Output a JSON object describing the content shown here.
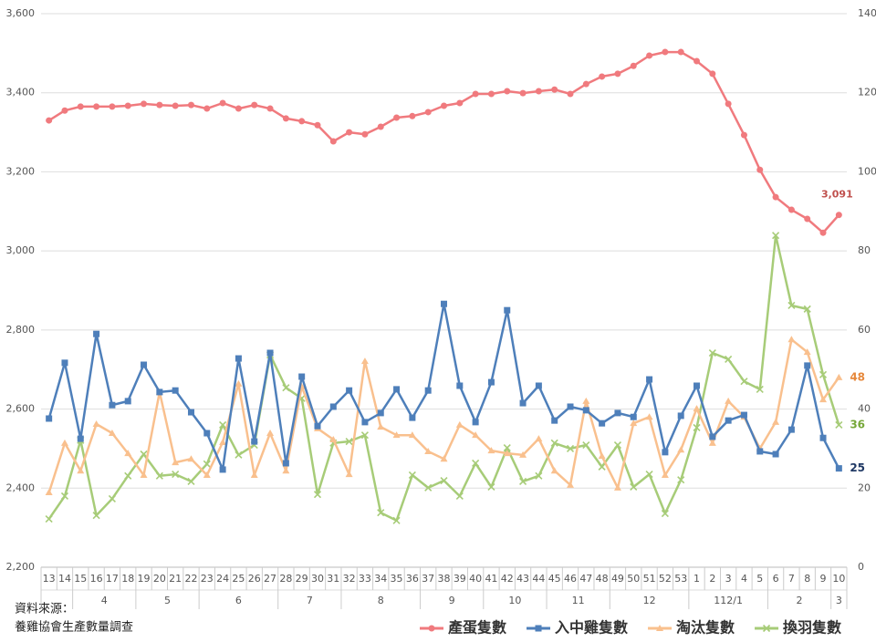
{
  "chart_data": {
    "type": "line",
    "categories": [
      "13",
      "14",
      "15",
      "16",
      "17",
      "18",
      "19",
      "20",
      "21",
      "22",
      "23",
      "24",
      "25",
      "26",
      "27",
      "28",
      "29",
      "30",
      "31",
      "32",
      "33",
      "34",
      "35",
      "36",
      "37",
      "38",
      "39",
      "40",
      "41",
      "42",
      "43",
      "44",
      "45",
      "46",
      "47",
      "48",
      "49",
      "50",
      "51",
      "52",
      "53",
      "1",
      "2",
      "3",
      "4",
      "5",
      "6",
      "7",
      "8",
      "9",
      "10"
    ],
    "category_groups": [
      {
        "label": null,
        "count": 2
      },
      {
        "label": "4",
        "count": 4
      },
      {
        "label": "5",
        "count": 4
      },
      {
        "label": "6",
        "count": 5
      },
      {
        "label": "7",
        "count": 4
      },
      {
        "label": "8",
        "count": 5
      },
      {
        "label": "9",
        "count": 4
      },
      {
        "label": "10",
        "count": 4
      },
      {
        "label": "11",
        "count": 4
      },
      {
        "label": "12",
        "count": 5
      },
      {
        "label": "112/1",
        "count": 5
      },
      {
        "label": "2",
        "count": 4
      },
      {
        "label": "3",
        "count": 1
      }
    ],
    "ylim": [
      2200,
      3600
    ],
    "yticks": [
      {
        "value": 2200,
        "label": "2,200"
      },
      {
        "value": 2400,
        "label": "2,400"
      },
      {
        "value": 2600,
        "label": "2,600"
      },
      {
        "value": 2800,
        "label": "2,800"
      },
      {
        "value": 3000,
        "label": "3,000"
      },
      {
        "value": 3200,
        "label": "3,200"
      },
      {
        "value": 3400,
        "label": "3,400"
      },
      {
        "value": 3600,
        "label": "3,600"
      }
    ],
    "y2lim": [
      0,
      140
    ],
    "y2ticks": [
      0,
      20,
      40,
      60,
      80,
      100,
      120,
      140
    ],
    "grid": true,
    "label_last": true,
    "source": [
      "資料來源：",
      "養雞協會生產數量調查"
    ],
    "series": [
      {
        "name": "產蛋隻數",
        "color": "#f07a7e",
        "label_color": "#c0504d",
        "marker": "circle",
        "values": [
          3330,
          3355,
          3365,
          3365,
          3365,
          3367,
          3372,
          3369,
          3367,
          3369,
          3360,
          3374,
          3360,
          3369,
          3360,
          3335,
          3328,
          3318,
          3277,
          3300,
          3295,
          3314,
          3337,
          3341,
          3351,
          3367,
          3374,
          3397,
          3397,
          3404,
          3399,
          3404,
          3408,
          3397,
          3422,
          3441,
          3448,
          3468,
          3494,
          3503,
          3503,
          3480,
          3448,
          3372,
          3293,
          3205,
          3136,
          3104,
          3081,
          3046,
          3091
        ],
        "value_labels": [
          null,
          null,
          null,
          null,
          null,
          null,
          null,
          null,
          null,
          null,
          null,
          null,
          null,
          null,
          null,
          null,
          null,
          null,
          null,
          null,
          null,
          null,
          null,
          null,
          null,
          null,
          null,
          null,
          null,
          null,
          null,
          null,
          null,
          null,
          null,
          null,
          null,
          null,
          null,
          null,
          null,
          null,
          null,
          null,
          null,
          null,
          null,
          null,
          null,
          null,
          "3,091"
        ]
      },
      {
        "name": "入中雞隻數",
        "color": "#4e7fba",
        "label_color": "#1f3864",
        "marker": "square",
        "axis": "y2",
        "values": [
          37.6,
          51.7,
          32.5,
          59.0,
          41.0,
          42.0,
          51.2,
          44.3,
          44.7,
          39.2,
          33.9,
          24.7,
          52.8,
          31.8,
          54.2,
          26.3,
          48.2,
          35.7,
          40.6,
          44.7,
          36.7,
          39.0,
          45.0,
          37.8,
          44.7,
          66.6,
          45.9,
          36.7,
          46.8,
          65.0,
          41.5,
          45.9,
          37.1,
          40.6,
          39.7,
          36.4,
          39.0,
          38.0,
          47.5,
          29.1,
          38.3,
          45.9,
          33.0,
          37.1,
          38.5,
          29.3,
          28.6,
          34.8,
          51.0,
          32.7,
          25
        ]
      },
      {
        "name": "淘汰隻數",
        "color": "#f9c08e",
        "label_color": "#e6883c",
        "marker": "triangle",
        "axis": "y2",
        "values": [
          18.9,
          31.4,
          24.4,
          36.2,
          33.9,
          28.8,
          23.3,
          44.3,
          26.5,
          27.4,
          23.3,
          31.6,
          46.4,
          23.3,
          33.9,
          24.4,
          45.7,
          35.1,
          32.3,
          23.5,
          52.1,
          35.5,
          33.4,
          33.4,
          29.3,
          27.4,
          36.0,
          33.4,
          29.5,
          28.8,
          28.4,
          32.5,
          24.4,
          20.8,
          42.0,
          28.1,
          20.1,
          36.4,
          38.0,
          23.3,
          29.7,
          40.1,
          31.4,
          42.0,
          38.0,
          30.0,
          36.7,
          57.6,
          54.4,
          42.4,
          48
        ]
      },
      {
        "name": "換羽隻數",
        "color": "#a7cc78",
        "label_color": "#77a83a",
        "marker": "x",
        "axis": "y2",
        "values": [
          12.2,
          18.0,
          32.1,
          13.1,
          17.3,
          23.1,
          28.6,
          23.1,
          23.5,
          21.7,
          26.1,
          36.0,
          28.4,
          30.9,
          53.7,
          45.4,
          42.7,
          18.4,
          31.4,
          31.8,
          33.4,
          13.8,
          11.8,
          23.3,
          20.1,
          21.9,
          18.0,
          26.3,
          20.3,
          30.2,
          21.7,
          23.1,
          31.4,
          30.0,
          30.9,
          25.4,
          30.9,
          20.3,
          23.5,
          13.6,
          22.1,
          35.3,
          54.2,
          52.6,
          47.0,
          45.0,
          83.9,
          66.2,
          65.3,
          48.7,
          36
        ]
      }
    ]
  }
}
